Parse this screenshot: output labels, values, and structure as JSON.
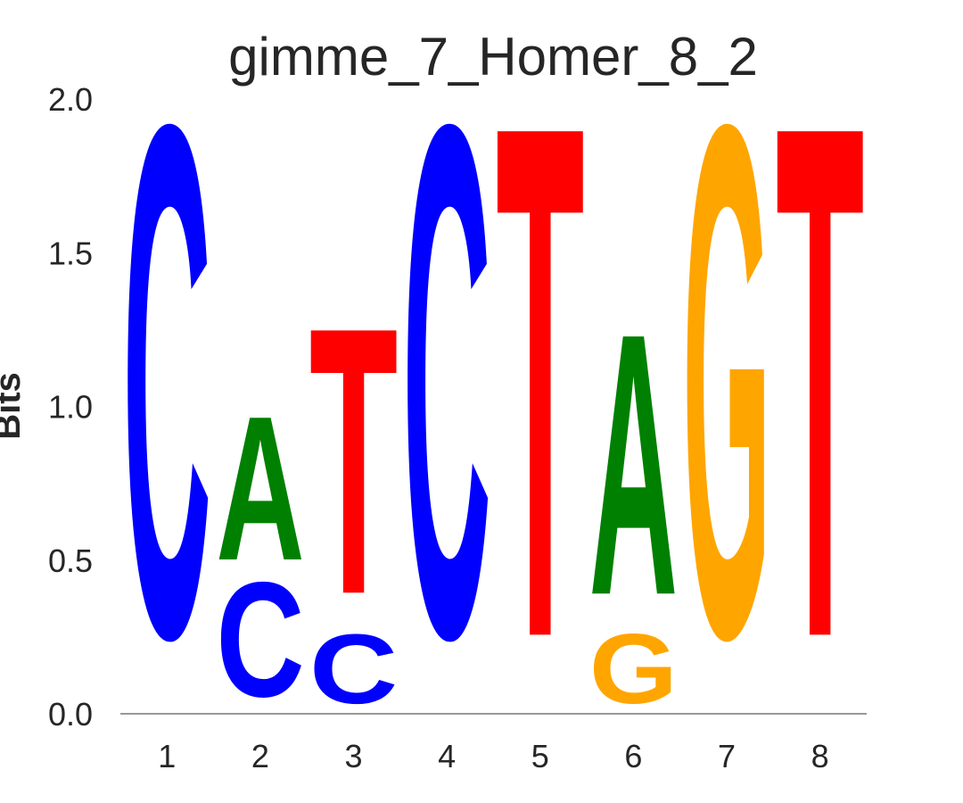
{
  "chart_data": {
    "type": "sequence-logo",
    "title": "gimme_7_Homer_8_2",
    "xlabel": "",
    "ylabel": "Bits",
    "ylim": [
      0,
      2.0
    ],
    "yticks": [
      "0.0",
      "0.5",
      "1.0",
      "1.5",
      "2.0"
    ],
    "positions": [
      "1",
      "2",
      "3",
      "4",
      "5",
      "6",
      "7",
      "8"
    ],
    "colors": {
      "A": "#008000",
      "C": "#0000ff",
      "G": "#ffa500",
      "T": "#ff0000"
    },
    "columns": [
      {
        "position": "1",
        "letters": [
          {
            "base": "C",
            "bits": 1.92
          }
        ]
      },
      {
        "position": "2",
        "letters": [
          {
            "base": "C",
            "bits": 0.43
          },
          {
            "base": "A",
            "bits": 0.54
          }
        ]
      },
      {
        "position": "3",
        "letters": [
          {
            "base": "C",
            "bits": 0.26
          },
          {
            "base": "T",
            "bits": 1.0
          }
        ]
      },
      {
        "position": "4",
        "letters": [
          {
            "base": "C",
            "bits": 1.92
          }
        ]
      },
      {
        "position": "5",
        "letters": [
          {
            "base": "T",
            "bits": 1.92
          }
        ]
      },
      {
        "position": "6",
        "letters": [
          {
            "base": "G",
            "bits": 0.26
          },
          {
            "base": "A",
            "bits": 0.98
          }
        ]
      },
      {
        "position": "7",
        "letters": [
          {
            "base": "G",
            "bits": 1.92
          }
        ]
      },
      {
        "position": "8",
        "letters": [
          {
            "base": "T",
            "bits": 1.92
          }
        ]
      }
    ]
  }
}
